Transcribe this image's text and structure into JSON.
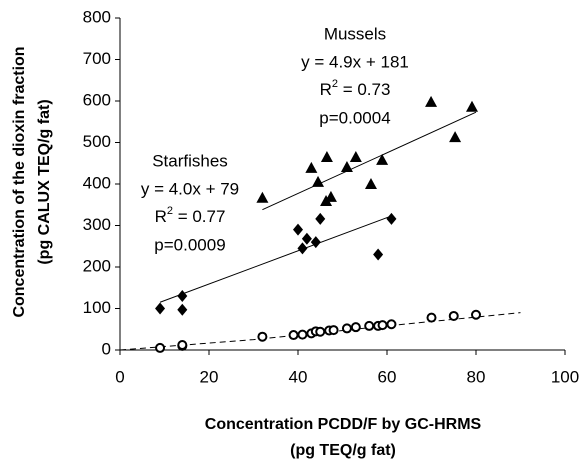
{
  "chart_data": {
    "type": "scatter",
    "xlabel": [
      "Concentration PCDD/F by GC-HRMS",
      "(pg TEQ/g fat)"
    ],
    "ylabel": [
      "Concentration of the dioxin fraction",
      "(pg CALUX TEQ/g fat)"
    ],
    "xlim": [
      0,
      100
    ],
    "xticks": [
      0,
      20,
      40,
      60,
      80,
      100
    ],
    "ylim": [
      0,
      800
    ],
    "yticks": [
      0,
      100,
      200,
      300,
      400,
      500,
      600,
      700,
      800
    ],
    "series": [
      {
        "marker": "triangle",
        "color": "#000000",
        "x": [
          32,
          43,
          44.5,
          46.5,
          46.3,
          47.4,
          51,
          53,
          56.4,
          58.9,
          69.9,
          75.3,
          79.1
        ],
        "values": [
          367,
          439,
          405,
          465,
          359,
          369,
          441,
          465,
          400,
          458,
          598,
          513,
          586
        ]
      },
      {
        "marker": "diamond",
        "color": "#000000",
        "x": [
          9,
          14,
          14,
          40,
          41,
          42,
          44,
          45,
          58,
          61
        ],
        "values": [
          100,
          97,
          130,
          290,
          245,
          268,
          260,
          316,
          230,
          316
        ]
      },
      {
        "marker": "circle",
        "color": "#000000",
        "x": [
          9,
          14,
          14,
          32,
          39,
          41,
          43,
          44,
          45,
          47,
          48,
          51,
          53,
          56,
          58,
          59,
          61,
          70,
          75,
          80
        ],
        "values": [
          5,
          10,
          12,
          32,
          36,
          37,
          40,
          45,
          44,
          47,
          48,
          52,
          55,
          58,
          58,
          60,
          62,
          78,
          82,
          85
        ]
      }
    ],
    "lines": [
      {
        "dash": false,
        "x": [
          32,
          80
        ],
        "values": [
          338,
          573
        ]
      },
      {
        "dash": false,
        "x": [
          9,
          61
        ],
        "values": [
          115,
          323
        ]
      },
      {
        "dash": true,
        "x": [
          0,
          30,
          60,
          90
        ],
        "values": [
          0,
          25,
          58,
          90
        ]
      }
    ],
    "annotations": [
      {
        "lines": [
          "Mussels",
          "y = 4.9x + 181",
          {
            "base": "R",
            "sup": "2",
            "rest": " = 0.73"
          },
          "p=0.0004"
        ]
      },
      {
        "lines": [
          "Starfishes",
          "y = 4.0x + 79",
          {
            "base": "R",
            "sup": "2",
            "rest": " = 0.77"
          },
          "p=0.0009"
        ]
      }
    ]
  }
}
